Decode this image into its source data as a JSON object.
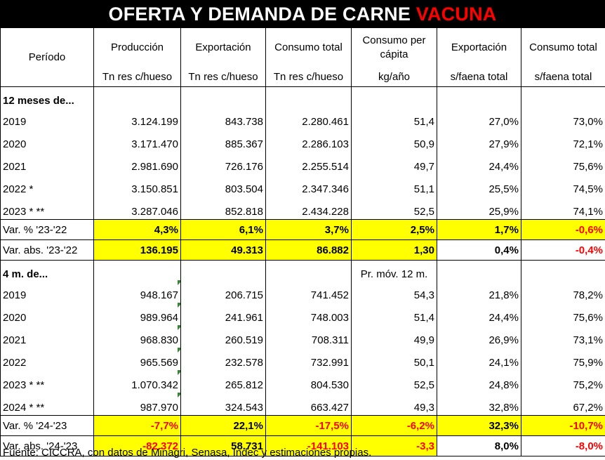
{
  "title": {
    "main": "OFERTA Y DEMANDA DE CARNE",
    "highlight": "VACUNA"
  },
  "headers": {
    "periodo": "Período",
    "cols": [
      {
        "top": "Producción",
        "unit": "Tn res c/hueso"
      },
      {
        "top": "Exportación",
        "unit": "Tn res c/hueso"
      },
      {
        "top": "Consumo total",
        "unit": "Tn res c/hueso"
      },
      {
        "top": "Consumo per cápita",
        "unit": "kg/año"
      },
      {
        "top": "Exportación",
        "unit": "s/faena total"
      },
      {
        "top": "Consumo total",
        "unit": "s/faena total"
      }
    ]
  },
  "section1": {
    "label": "12 meses de...",
    "rows": [
      {
        "period": "2019",
        "values": [
          "3.124.199",
          "843.738",
          "2.280.461",
          "51,4",
          "27,0%",
          "73,0%"
        ]
      },
      {
        "period": "2020",
        "values": [
          "3.171.470",
          "885.367",
          "2.286.103",
          "50,9",
          "27,9%",
          "72,1%"
        ]
      },
      {
        "period": "2021",
        "values": [
          "2.981.690",
          "726.176",
          "2.255.514",
          "49,7",
          "24,4%",
          "75,6%"
        ]
      },
      {
        "period": "2022 *",
        "values": [
          "3.150.851",
          "803.504",
          "2.347.346",
          "51,1",
          "25,5%",
          "74,5%"
        ]
      },
      {
        "period": "2023 * **",
        "values": [
          "3.287.046",
          "852.818",
          "2.434.228",
          "52,5",
          "25,9%",
          "74,1%"
        ]
      }
    ],
    "var_pct": {
      "label": "Var. % '23-'22",
      "values": [
        "4,3%",
        "6,1%",
        "3,7%",
        "2,5%",
        "1,7%",
        "-0,6%"
      ]
    },
    "var_abs": {
      "label": "Var. abs. '23-'22",
      "values": [
        "136.195",
        "49.313",
        "86.882",
        "1,30",
        "0,4%",
        "-0,4%"
      ]
    }
  },
  "section2": {
    "label": "4 m. de...",
    "note": "Pr. móv. 12 m.",
    "rows": [
      {
        "period": "2019",
        "values": [
          "948.167",
          "206.715",
          "741.452",
          "54,3",
          "21,8%",
          "78,2%"
        ]
      },
      {
        "period": "2020",
        "values": [
          "989.964",
          "241.961",
          "748.003",
          "51,4",
          "24,4%",
          "75,6%"
        ]
      },
      {
        "period": "2021",
        "values": [
          "968.830",
          "260.519",
          "708.311",
          "49,9",
          "26,9%",
          "73,1%"
        ]
      },
      {
        "period": "2022",
        "values": [
          "965.569",
          "232.578",
          "732.991",
          "50,1",
          "24,1%",
          "75,9%"
        ]
      },
      {
        "period": "2023 * **",
        "values": [
          "1.070.342",
          "265.812",
          "804.530",
          "52,5",
          "24,8%",
          "75,2%"
        ]
      },
      {
        "period": "2024 * **",
        "values": [
          "987.970",
          "324.543",
          "663.427",
          "49,3",
          "32,8%",
          "67,2%"
        ]
      }
    ],
    "var_pct": {
      "label": "Var. % '24-'23",
      "values": [
        "-7,7%",
        "22,1%",
        "-17,5%",
        "-6,2%",
        "32,3%",
        "-10,7%"
      ]
    },
    "var_abs": {
      "label": "Var. abs. '24-'23",
      "values": [
        "-82.372",
        "58.731",
        "-141.103",
        "-3,3",
        "8,0%",
        "-8,0%"
      ]
    }
  },
  "source": "Fuente: CICCRA, con datos de Minagri, Senasa, Indec y estimaciones propias.",
  "colors": {
    "highlight_fill": "#ffff00",
    "negative": "#ff0000",
    "title_bg": "#000000",
    "marker": "#2e8b2e"
  }
}
